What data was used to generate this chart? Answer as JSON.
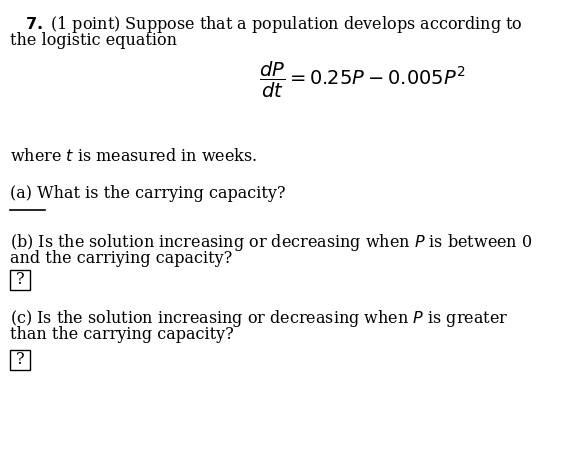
{
  "background_color": "#ffffff",
  "text_color": "#000000",
  "font_size_main": 11.5,
  "font_size_eq": 14,
  "line1": "$\\mathbf{7.}$ (1 point) Suppose that a population develops according to",
  "line2": "the logistic equation",
  "equation": "$\\dfrac{dP}{dt} = 0.25P - 0.005P^2$",
  "where_text": "where $t$ is measured in weeks.",
  "part_a": "(a) What is the carrying capacity?",
  "part_b_line1": "(b) Is the solution increasing or decreasing when $P$ is between 0",
  "part_b_line2": "and the carriying capacity?",
  "part_b_box": "?",
  "part_c_line1": "(c) Is the solution increasing or decreasing when $P$ is greater",
  "part_c_line2": "than the carrying capacity?",
  "part_c_box": "?"
}
